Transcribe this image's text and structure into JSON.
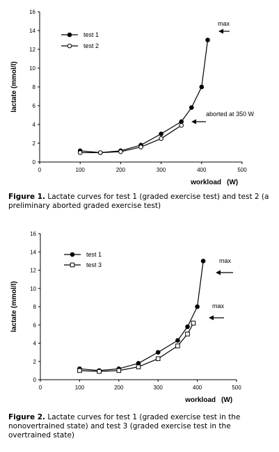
{
  "chart_data": [
    {
      "type": "line",
      "ylabel": "lactate (mmol/l)",
      "xlabel": "workload",
      "xlabel_unit": "(W)",
      "xlim": [
        0,
        500
      ],
      "ylim": [
        0,
        16
      ],
      "x_ticks": [
        0,
        100,
        200,
        300,
        400,
        500
      ],
      "y_ticks": [
        0,
        2,
        4,
        6,
        8,
        10,
        12,
        14,
        16
      ],
      "grid": false,
      "legend": "top-left",
      "series": [
        {
          "name": "test 1",
          "marker": "filled-circle",
          "x": [
            100,
            150,
            200,
            250,
            300,
            350,
            375,
            400,
            415
          ],
          "y": [
            1.2,
            1.0,
            1.2,
            1.8,
            3.0,
            4.3,
            5.8,
            8.0,
            13.0
          ]
        },
        {
          "name": "test 2",
          "marker": "open-circle",
          "x": [
            100,
            150,
            200,
            250,
            300,
            350
          ],
          "y": [
            1.0,
            1.0,
            1.1,
            1.6,
            2.5,
            3.9
          ]
        }
      ],
      "annotations": [
        {
          "text": "max",
          "x": 415,
          "y": 13.0
        },
        {
          "text": "aborted at 350 W",
          "x": 350,
          "y": 3.9
        }
      ],
      "caption_label": "Figure 1.",
      "caption_text": "Lactate curves for test 1 (graded exercise test) and test 2 (a preliminary aborted graded exercise test)"
    },
    {
      "type": "line",
      "ylabel": "lactate (mmol/l)",
      "xlabel": "workload",
      "xlabel_unit": "(W)",
      "xlim": [
        0,
        500
      ],
      "ylim": [
        0,
        16
      ],
      "x_ticks": [
        0,
        100,
        200,
        300,
        400,
        500
      ],
      "y_ticks": [
        0,
        2,
        4,
        6,
        8,
        10,
        12,
        14,
        16
      ],
      "grid": false,
      "legend": "top-left",
      "series": [
        {
          "name": "test 1",
          "marker": "filled-circle",
          "x": [
            100,
            150,
            200,
            250,
            300,
            350,
            375,
            400,
            415
          ],
          "y": [
            1.2,
            1.0,
            1.2,
            1.8,
            3.0,
            4.3,
            5.8,
            8.0,
            13.0
          ]
        },
        {
          "name": "test 3",
          "marker": "open-square",
          "x": [
            100,
            150,
            200,
            250,
            300,
            350,
            375,
            390
          ],
          "y": [
            1.0,
            0.9,
            1.0,
            1.4,
            2.3,
            3.7,
            5.0,
            6.2
          ]
        }
      ],
      "annotations": [
        {
          "text": "max",
          "x": 415,
          "y": 13.0
        },
        {
          "text": "max",
          "x": 390,
          "y": 6.2
        }
      ],
      "caption_label": "Figure 2.",
      "caption_text": "Lactate curves for test 1 (graded exercise test in the nonovertrained state) and test 3 (graded exercise test in the overtrained state)"
    }
  ]
}
